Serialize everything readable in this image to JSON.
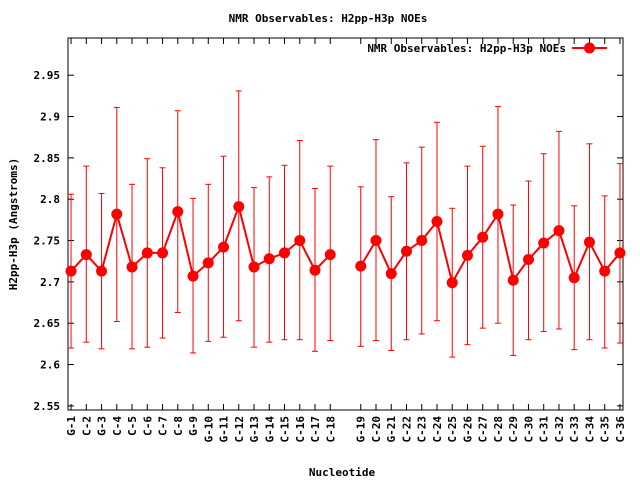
{
  "chart_data": {
    "type": "line",
    "title": "NMR Observables: H2pp-H3p NOEs",
    "xlabel": "Nucleotide",
    "ylabel": "H2pp-H3p (Angstroms)",
    "ylim": [
      2.545,
      2.995
    ],
    "yticks": [
      "2.55",
      "2.6",
      "2.65",
      "2.7",
      "2.75",
      "2.8",
      "2.85",
      "2.9",
      "2.95"
    ],
    "ytick_values": [
      2.55,
      2.6,
      2.65,
      2.7,
      2.75,
      2.8,
      2.85,
      2.9,
      2.95
    ],
    "categories": [
      "G-1",
      "C-2",
      "G-3",
      "C-4",
      "C-5",
      "C-6",
      "C-7",
      "C-8",
      "G-9",
      "G-10",
      "G-11",
      "C-12",
      "G-13",
      "G-14",
      "C-15",
      "C-16",
      "C-17",
      "C-18",
      "G-19",
      "C-20",
      "G-21",
      "C-22",
      "C-23",
      "C-24",
      "C-25",
      "G-26",
      "C-27",
      "C-28",
      "C-29",
      "C-30",
      "C-31",
      "C-32",
      "C-33",
      "C-34",
      "C-35",
      "C-36"
    ],
    "x": [
      1,
      2,
      3,
      4,
      5,
      6,
      7,
      8,
      9,
      10,
      11,
      12,
      13,
      14,
      15,
      16,
      17,
      18,
      20,
      21,
      22,
      23,
      24,
      25,
      26,
      27,
      28,
      29,
      30,
      31,
      32,
      33,
      34,
      35,
      36,
      37
    ],
    "xlim": [
      0.8,
      37.2
    ],
    "grid": false,
    "legend_position": "top-right",
    "series": [
      {
        "name": "NMR Observables: H2pp-H3p NOEs",
        "color": "#ff0000",
        "values": [
          2.713,
          2.733,
          2.713,
          2.782,
          2.718,
          2.735,
          2.735,
          2.785,
          2.707,
          2.723,
          2.742,
          2.791,
          2.718,
          2.728,
          2.735,
          2.75,
          2.714,
          2.733,
          2.719,
          2.75,
          2.71,
          2.737,
          2.75,
          2.773,
          2.699,
          2.732,
          2.754,
          2.782,
          2.702,
          2.727,
          2.747,
          2.762,
          2.705,
          2.748,
          2.713,
          2.735
        ],
        "error_low": [
          2.62,
          2.627,
          2.619,
          2.652,
          2.619,
          2.621,
          2.632,
          2.663,
          2.614,
          2.628,
          2.633,
          2.653,
          2.621,
          2.627,
          2.63,
          2.63,
          2.616,
          2.629,
          2.622,
          2.629,
          2.617,
          2.63,
          2.637,
          2.653,
          2.609,
          2.624,
          2.644,
          2.65,
          2.611,
          2.63,
          2.64,
          2.643,
          2.618,
          2.63,
          2.62,
          2.626
        ],
        "error_high": [
          2.806,
          2.84,
          2.807,
          2.911,
          2.818,
          2.849,
          2.838,
          2.907,
          2.801,
          2.818,
          2.852,
          2.931,
          2.814,
          2.827,
          2.841,
          2.871,
          2.813,
          2.84,
          2.815,
          2.872,
          2.803,
          2.844,
          2.863,
          2.893,
          2.789,
          2.84,
          2.864,
          2.912,
          2.793,
          2.822,
          2.855,
          2.882,
          2.792,
          2.867,
          2.804,
          2.843
        ]
      }
    ]
  }
}
